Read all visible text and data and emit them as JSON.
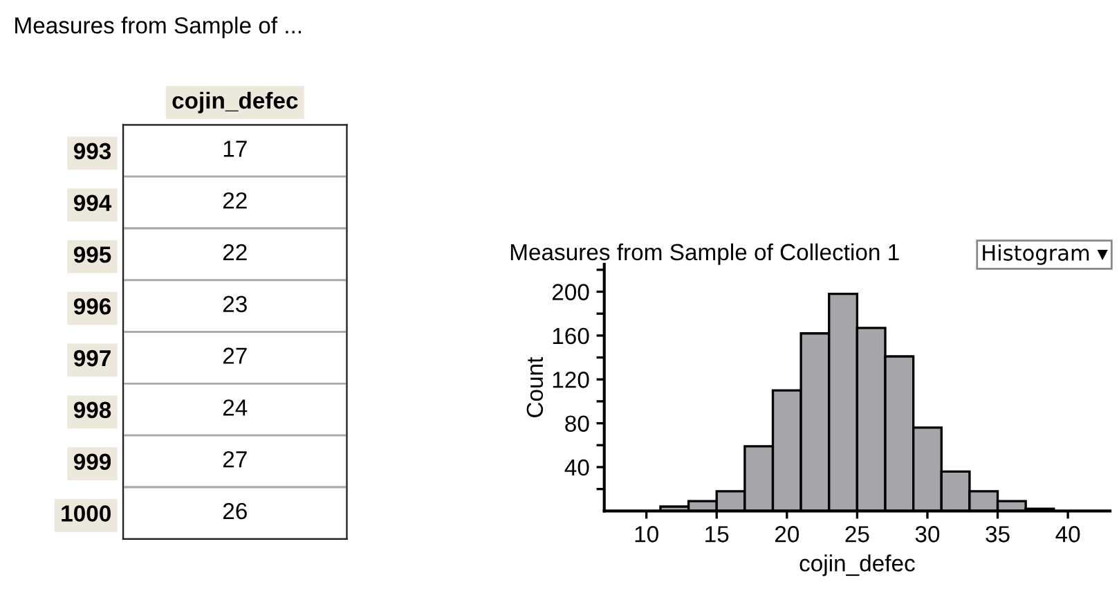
{
  "chart_data": [
    {
      "type": "heatmap",
      "title": "Measures from Sample of ...",
      "categories": [
        "cojin_defec"
      ],
      "y_categories": [
        "993",
        "994",
        "995",
        "996",
        "997",
        "998",
        "999",
        "1000"
      ],
      "cells": [
        [
          17
        ],
        [
          22
        ],
        [
          22
        ],
        [
          23
        ],
        [
          27
        ],
        [
          24
        ],
        [
          27
        ],
        [
          26
        ]
      ],
      "data_labels": true
    },
    {
      "type": "histogram",
      "title": "Measures from Sample of Collection 1",
      "annotations": [
        "Histogram ▾"
      ],
      "xlabel": "cojin_defec",
      "ylabel": "Count",
      "bins": [
        11,
        13,
        15,
        17,
        19,
        21,
        23,
        25,
        27,
        29,
        31,
        33,
        35,
        37,
        39
      ],
      "values": [
        4,
        9,
        18,
        59,
        110,
        162,
        198,
        167,
        141,
        76,
        36,
        18,
        9,
        2
      ],
      "color": "#a6a6aa",
      "xlim": [
        7,
        43
      ],
      "xticks": [
        10,
        15,
        20,
        25,
        30,
        35,
        40
      ],
      "ylim": [
        0,
        225
      ],
      "yticks": [
        {
          "value": 20,
          "label": null
        },
        40,
        {
          "value": 60,
          "label": null
        },
        80,
        {
          "value": 100,
          "label": null
        },
        120,
        {
          "value": 140,
          "label": null
        },
        160,
        {
          "value": 180,
          "label": null
        },
        200,
        {
          "value": 220,
          "label": null
        }
      ],
      "grid": false
    }
  ]
}
